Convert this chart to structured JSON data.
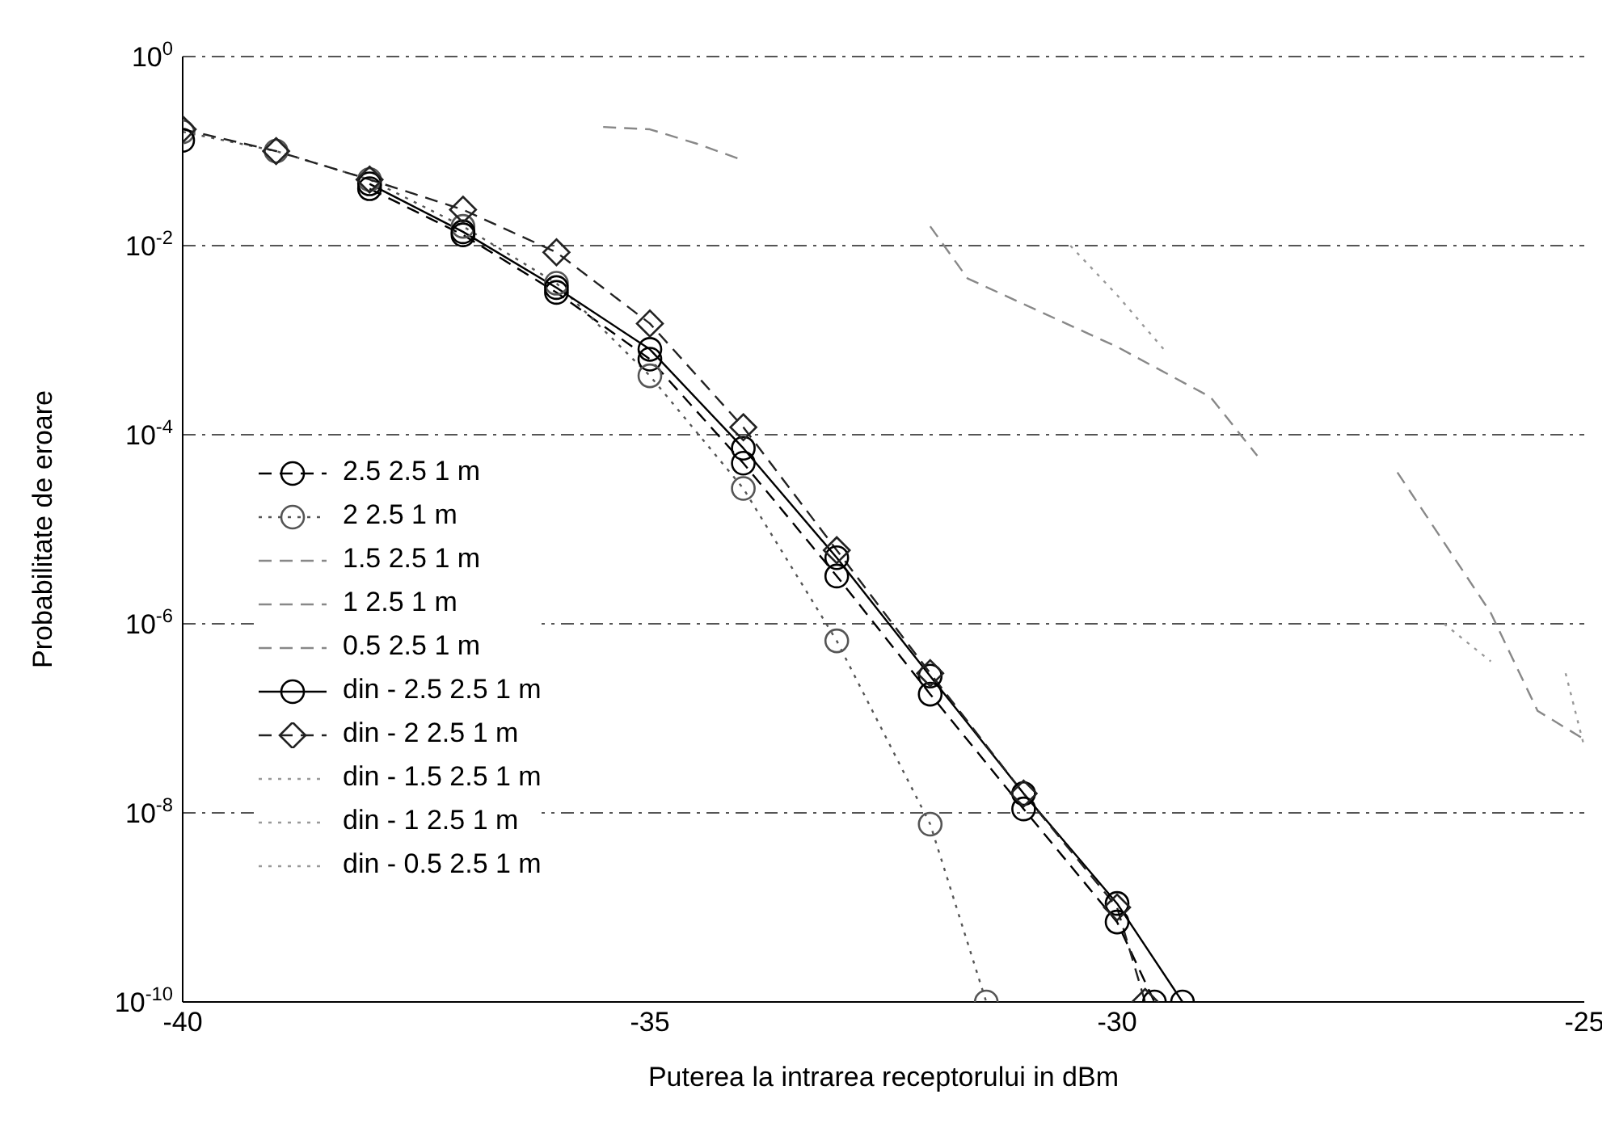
{
  "chart_data": {
    "type": "line",
    "xlabel": "Puterea la intrarea receptorului in dBm",
    "ylabel": "Probabilitate de eroare",
    "log": "y",
    "grid": "y",
    "legend": "left",
    "xlim": [
      -40,
      -25
    ],
    "xticks": [
      -40,
      -35,
      -30,
      -25
    ],
    "ylim": [
      1e-10,
      1
    ],
    "yticks": [
      {
        "value": 1,
        "label": "10$^{0}$"
      },
      {
        "value": 0.01,
        "label": "10$^{-2}$"
      },
      {
        "value": 0.0001,
        "label": "10$^{-4}$"
      },
      {
        "value": 1e-06,
        "label": "10$^{-6}$"
      },
      {
        "value": 1e-08,
        "label": "10$^{-8}$"
      },
      {
        "value": 1e-10,
        "label": "10$^{-10}$"
      }
    ],
    "series": [
      {
        "name": "2.5 2.5 1 m",
        "color": "#000000",
        "marker": "circle",
        "line_style": "dashed",
        "x": [
          -38,
          -37,
          -36,
          -35,
          -34,
          -33,
          -32,
          -31,
          -30,
          -29.6
        ],
        "values": [
          0.04,
          0.013,
          0.0032,
          0.00063,
          5e-05,
          3.2e-06,
          1.8e-07,
          1.1e-08,
          7e-10,
          1e-10
        ]
      },
      {
        "name": "2 2.5 1 m",
        "color": "#555555",
        "marker": "circle",
        "line_style": "dotted",
        "x": [
          -40,
          -39,
          -38,
          -37,
          -36,
          -35,
          -34,
          -33,
          -32,
          -31.4
        ],
        "values": [
          0.16,
          0.1,
          0.05,
          0.016,
          0.004,
          0.00042,
          2.7e-05,
          6.6e-07,
          7.6e-09,
          1e-10
        ]
      },
      {
        "name": "1.5 2.5 1 m",
        "color": "#888888",
        "marker": "none",
        "line_style": "dashed",
        "x": [
          -35.5,
          -35,
          -34.5,
          -34
        ],
        "values": [
          0.18,
          0.17,
          0.12,
          0.08
        ]
      },
      {
        "name": "1 2.5 1 m",
        "color": "#888888",
        "marker": "none",
        "line_style": "dashed",
        "x": [
          -32,
          -31.6,
          -30,
          -29,
          -28.5
        ],
        "values": [
          0.016,
          0.0045,
          0.00085,
          0.00025,
          6e-05
        ]
      },
      {
        "name": "0.5 2.5 1 m",
        "color": "#888888",
        "marker": "none",
        "line_style": "dashed",
        "x": [
          -27,
          -26,
          -25.5,
          -25
        ],
        "values": [
          4e-05,
          1.3e-06,
          1.2e-07,
          6e-08
        ]
      },
      {
        "name": "din - 2.5 2.5 1 m",
        "color": "#000000",
        "marker": "circle",
        "line_style": "solid",
        "x": [
          -40,
          -39,
          -38,
          -37,
          -36,
          -35,
          -34,
          -33,
          -32,
          -31,
          -30,
          -29.3
        ],
        "values": [
          0.13,
          null,
          0.045,
          0.014,
          0.0036,
          0.0008,
          7.2e-05,
          5e-06,
          2.8e-07,
          1.6e-08,
          1.1e-09,
          1e-10
        ]
      },
      {
        "name": "din - 2 2.5 1 m",
        "color": "#222222",
        "marker": "diamond",
        "line_style": "dashed",
        "x": [
          -40,
          -39,
          -38,
          -37,
          -36,
          -35,
          -34,
          -33,
          -32,
          -31,
          -30,
          -29.7
        ],
        "values": [
          0.17,
          0.1,
          0.05,
          0.024,
          0.0085,
          0.0015,
          0.00012,
          6e-06,
          3e-07,
          1.6e-08,
          1e-09,
          1e-10
        ]
      },
      {
        "name": "din - 1.5 2.5 1 m",
        "color": "#999999",
        "marker": "none",
        "line_style": "dotted",
        "x": [
          -30.5,
          -30,
          -29.5
        ],
        "values": [
          0.01,
          0.003,
          0.0008
        ]
      },
      {
        "name": "din - 1 2.5 1 m",
        "color": "#999999",
        "marker": "none",
        "line_style": "dotted",
        "x": [
          -26.5,
          -26
        ],
        "values": [
          1e-06,
          4e-07
        ]
      },
      {
        "name": "din - 0.5 2.5 1 m",
        "color": "#999999",
        "marker": "none",
        "line_style": "dotted",
        "x": [
          -25.2,
          -25
        ],
        "values": [
          3e-07,
          5e-08
        ]
      }
    ]
  }
}
